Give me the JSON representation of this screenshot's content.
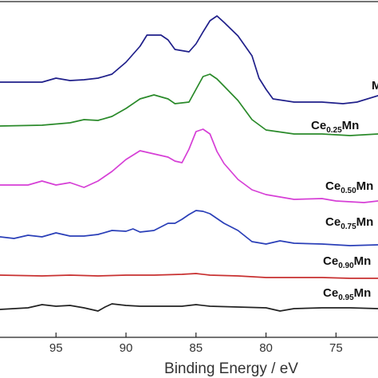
{
  "chart_data": {
    "type": "line",
    "title": "",
    "xlabel": "Binding Energy / eV",
    "ylabel": "",
    "xlim": [
      99,
      72
    ],
    "x_reversed": true,
    "x_ticks": [
      95,
      90,
      85,
      80,
      75
    ],
    "grid": false,
    "series": [
      {
        "label_main": "M",
        "label_sub": "",
        "label_tail": "",
        "color": "#1f1f8a",
        "points": [
          [
            99,
            103
          ],
          [
            96,
            103
          ],
          [
            95,
            98
          ],
          [
            94,
            101
          ],
          [
            93,
            100
          ],
          [
            92,
            98
          ],
          [
            91,
            93
          ],
          [
            90,
            78
          ],
          [
            89,
            58
          ],
          [
            88.5,
            44
          ],
          [
            87.5,
            44
          ],
          [
            87,
            50
          ],
          [
            86.5,
            62
          ],
          [
            85.5,
            65
          ],
          [
            85,
            55
          ],
          [
            84.5,
            40
          ],
          [
            84,
            26
          ],
          [
            83.5,
            20
          ],
          [
            83,
            28
          ],
          [
            82,
            45
          ],
          [
            81,
            70
          ],
          [
            80.5,
            98
          ],
          [
            80,
            112
          ],
          [
            79.5,
            124
          ],
          [
            78,
            128
          ],
          [
            76,
            128
          ],
          [
            74.5,
            130
          ],
          [
            73.5,
            128
          ],
          [
            72,
            120
          ]
        ]
      },
      {
        "label_main": "Ce",
        "label_sub": "0.25",
        "label_tail": "Mn",
        "color": "#2a8a2a",
        "points": [
          [
            99,
            158
          ],
          [
            96,
            157
          ],
          [
            94,
            154
          ],
          [
            93,
            150
          ],
          [
            92,
            151
          ],
          [
            91,
            146
          ],
          [
            90,
            136
          ],
          [
            89,
            124
          ],
          [
            88,
            119
          ],
          [
            87,
            124
          ],
          [
            86.5,
            130
          ],
          [
            85.5,
            128
          ],
          [
            85,
            112
          ],
          [
            84.5,
            96
          ],
          [
            84,
            93
          ],
          [
            83.5,
            99
          ],
          [
            83,
            108
          ],
          [
            82,
            126
          ],
          [
            81,
            150
          ],
          [
            80,
            163
          ],
          [
            78,
            168
          ],
          [
            76,
            168
          ],
          [
            74,
            170
          ],
          [
            72,
            168
          ]
        ]
      },
      {
        "label_main": "Ce",
        "label_sub": "0.50",
        "label_tail": "Mn",
        "color": "#d63fd6",
        "points": [
          [
            99,
            232
          ],
          [
            97,
            232
          ],
          [
            96,
            227
          ],
          [
            95,
            232
          ],
          [
            94,
            229
          ],
          [
            93,
            235
          ],
          [
            92,
            227
          ],
          [
            91,
            215
          ],
          [
            90,
            200
          ],
          [
            89,
            189
          ],
          [
            88,
            193
          ],
          [
            87,
            197
          ],
          [
            86.5,
            202
          ],
          [
            86,
            204
          ],
          [
            85.5,
            187
          ],
          [
            85,
            165
          ],
          [
            84.5,
            162
          ],
          [
            84,
            168
          ],
          [
            83.5,
            190
          ],
          [
            83,
            205
          ],
          [
            82,
            225
          ],
          [
            81,
            238
          ],
          [
            80,
            244
          ],
          [
            78,
            250
          ],
          [
            76,
            249
          ],
          [
            75,
            252
          ],
          [
            73,
            254
          ],
          [
            72,
            252
          ]
        ]
      },
      {
        "label_main": "Ce",
        "label_sub": "0.75",
        "label_tail": "Mn",
        "color": "#2a3fb8",
        "points": [
          [
            99,
            297
          ],
          [
            98,
            299
          ],
          [
            97,
            295
          ],
          [
            96,
            297
          ],
          [
            95,
            292
          ],
          [
            94,
            296
          ],
          [
            93,
            296
          ],
          [
            92,
            294
          ],
          [
            91,
            289
          ],
          [
            90,
            290
          ],
          [
            89.5,
            287
          ],
          [
            89,
            291
          ],
          [
            88,
            289
          ],
          [
            87,
            280
          ],
          [
            86.5,
            280
          ],
          [
            86,
            275
          ],
          [
            85.5,
            269
          ],
          [
            85,
            264
          ],
          [
            84.5,
            265
          ],
          [
            84,
            268
          ],
          [
            83,
            280
          ],
          [
            82,
            289
          ],
          [
            81,
            303
          ],
          [
            80,
            306
          ],
          [
            79,
            302
          ],
          [
            78,
            305
          ],
          [
            76,
            306
          ],
          [
            74,
            308
          ],
          [
            72,
            307
          ]
        ]
      },
      {
        "label_main": "Ce",
        "label_sub": "0.90",
        "label_tail": "Mn",
        "color": "#c83030",
        "points": [
          [
            99,
            345
          ],
          [
            96,
            346
          ],
          [
            94,
            345
          ],
          [
            92,
            346
          ],
          [
            90,
            345
          ],
          [
            88,
            345
          ],
          [
            86,
            344
          ],
          [
            85,
            343
          ],
          [
            84,
            345
          ],
          [
            82,
            346
          ],
          [
            80,
            348
          ],
          [
            78,
            348
          ],
          [
            76,
            348
          ],
          [
            74,
            349
          ],
          [
            72,
            349
          ]
        ]
      },
      {
        "label_main": "Ce",
        "label_sub": "0.95",
        "label_tail": "Mn",
        "color": "#222222",
        "points": [
          [
            99,
            388
          ],
          [
            97,
            386
          ],
          [
            96,
            382
          ],
          [
            95,
            384
          ],
          [
            94,
            383
          ],
          [
            93,
            386
          ],
          [
            92,
            390
          ],
          [
            91.5,
            385
          ],
          [
            91,
            381
          ],
          [
            90,
            383
          ],
          [
            89,
            384
          ],
          [
            88,
            384
          ],
          [
            86,
            384
          ],
          [
            85,
            382
          ],
          [
            84,
            384
          ],
          [
            82,
            385
          ],
          [
            80,
            386
          ],
          [
            79,
            390
          ],
          [
            78,
            387
          ],
          [
            76,
            386
          ],
          [
            74,
            386
          ],
          [
            72,
            387
          ]
        ]
      }
    ]
  }
}
